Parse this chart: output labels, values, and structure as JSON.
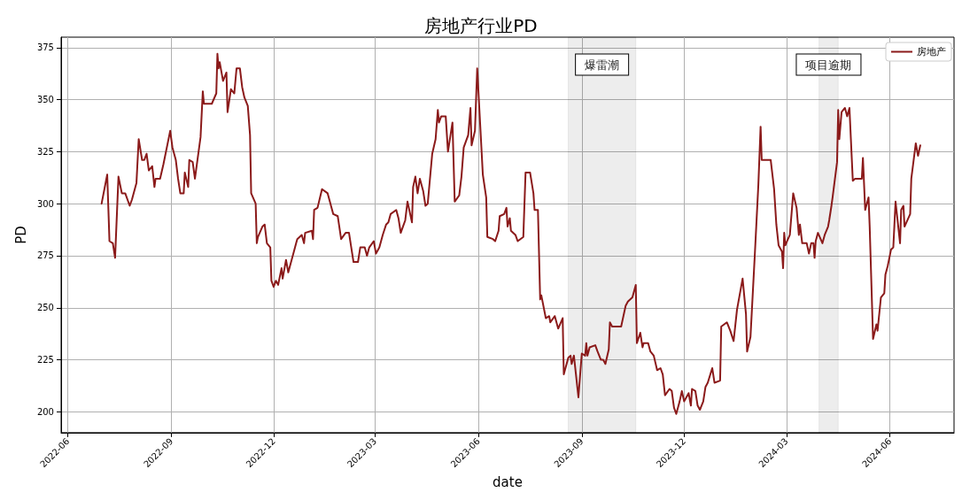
{
  "chart_data": {
    "type": "line",
    "title": "房地产行业PD",
    "xlabel": "date",
    "ylabel": "PD",
    "x": [
      "2022-07-01",
      "2022-07-06",
      "2022-07-08",
      "2022-07-11",
      "2022-07-13",
      "2022-07-16",
      "2022-07-19",
      "2022-07-22",
      "2022-07-26",
      "2022-07-28",
      "2022-08-01",
      "2022-08-03",
      "2022-08-06",
      "2022-08-08",
      "2022-08-10",
      "2022-08-12",
      "2022-08-15",
      "2022-08-17",
      "2022-08-18",
      "2022-08-22",
      "2022-08-25",
      "2022-08-31",
      "2022-09-02",
      "2022-09-05",
      "2022-09-07",
      "2022-09-09",
      "2022-09-12",
      "2022-09-13",
      "2022-09-16",
      "2022-09-17",
      "2022-09-20",
      "2022-09-22",
      "2022-09-27",
      "2022-09-29",
      "2022-09-30",
      "2022-10-07",
      "2022-10-11",
      "2022-10-12",
      "2022-10-13",
      "2022-10-14",
      "2022-10-17",
      "2022-10-20",
      "2022-10-21",
      "2022-10-24",
      "2022-10-27",
      "2022-10-29",
      "2022-11-01",
      "2022-11-03",
      "2022-11-05",
      "2022-11-08",
      "2022-11-10",
      "2022-11-11",
      "2022-11-15",
      "2022-11-16",
      "2022-11-17",
      "2022-11-21",
      "2022-11-23",
      "2022-11-25",
      "2022-11-28",
      "2022-11-29",
      "2022-12-01",
      "2022-12-03",
      "2022-12-05",
      "2022-12-08",
      "2022-12-09",
      "2022-12-12",
      "2022-12-14",
      "2022-12-19",
      "2022-12-21",
      "2022-12-22",
      "2022-12-26",
      "2022-12-28",
      "2022-12-29",
      "2023-01-04",
      "2023-01-05",
      "2023-01-06",
      "2023-01-09",
      "2023-01-13",
      "2023-01-18",
      "2023-01-23",
      "2023-01-27",
      "2023-01-30",
      "2023-02-03",
      "2023-02-06",
      "2023-02-08",
      "2023-02-10",
      "2023-02-14",
      "2023-02-16",
      "2023-02-20",
      "2023-02-22",
      "2023-02-24",
      "2023-02-28",
      "2023-03-02",
      "2023-03-05",
      "2023-03-08",
      "2023-03-11",
      "2023-03-13",
      "2023-03-15",
      "2023-03-20",
      "2023-03-22",
      "2023-03-24",
      "2023-03-28",
      "2023-03-30",
      "2023-04-03",
      "2023-04-04",
      "2023-04-06",
      "2023-04-08",
      "2023-04-10",
      "2023-04-13",
      "2023-04-15",
      "2023-04-17",
      "2023-04-21",
      "2023-04-24",
      "2023-04-26",
      "2023-04-27",
      "2023-04-29",
      "2023-05-03",
      "2023-05-05",
      "2023-05-09",
      "2023-05-11",
      "2023-05-15",
      "2023-05-17",
      "2023-05-19",
      "2023-05-23",
      "2023-05-25",
      "2023-05-26",
      "2023-05-29",
      "2023-05-31",
      "2023-06-05",
      "2023-06-08",
      "2023-06-09",
      "2023-06-14",
      "2023-06-16",
      "2023-06-19",
      "2023-06-20",
      "2023-06-24",
      "2023-06-26",
      "2023-06-27",
      "2023-06-29",
      "2023-06-30",
      "2023-07-04",
      "2023-07-06",
      "2023-07-11",
      "2023-07-13",
      "2023-07-17",
      "2023-07-20",
      "2023-07-21",
      "2023-07-24",
      "2023-07-26",
      "2023-07-27",
      "2023-07-31",
      "2023-08-03",
      "2023-08-04",
      "2023-08-08",
      "2023-08-11",
      "2023-08-15",
      "2023-08-16",
      "2023-08-20",
      "2023-08-22",
      "2023-08-23",
      "2023-08-25",
      "2023-08-29",
      "2023-09-01",
      "2023-09-04",
      "2023-09-05",
      "2023-09-06",
      "2023-09-08",
      "2023-09-13",
      "2023-09-15",
      "2023-09-18",
      "2023-09-20",
      "2023-09-22",
      "2023-09-25",
      "2023-09-26",
      "2023-09-28",
      "2023-10-06",
      "2023-10-10",
      "2023-10-12",
      "2023-10-16",
      "2023-10-19",
      "2023-10-20",
      "2023-10-23",
      "2023-10-25",
      "2023-10-26",
      "2023-10-30",
      "2023-11-01",
      "2023-11-04",
      "2023-11-07",
      "2023-11-10",
      "2023-11-12",
      "2023-11-14",
      "2023-11-18",
      "2023-11-20",
      "2023-11-22",
      "2023-11-24",
      "2023-11-27",
      "2023-11-29",
      "2023-12-01",
      "2023-12-05",
      "2023-12-07",
      "2023-12-08",
      "2023-12-11",
      "2023-12-13",
      "2023-12-15",
      "2023-12-18",
      "2023-12-20",
      "2023-12-22",
      "2023-12-26",
      "2023-12-28",
      "2024-01-02",
      "2024-01-03",
      "2024-01-08",
      "2024-01-11",
      "2024-01-14",
      "2024-01-17",
      "2024-01-22",
      "2024-01-25",
      "2024-01-26",
      "2024-01-29",
      "2024-02-02",
      "2024-02-05",
      "2024-02-07",
      "2024-02-08",
      "2024-02-16",
      "2024-02-19",
      "2024-02-21",
      "2024-02-23",
      "2024-02-26",
      "2024-02-27",
      "2024-02-28",
      "2024-02-29",
      "2024-03-04",
      "2024-03-07",
      "2024-03-10",
      "2024-03-12",
      "2024-03-13",
      "2024-03-15",
      "2024-03-19",
      "2024-03-21",
      "2024-03-23",
      "2024-03-25",
      "2024-03-26",
      "2024-03-27",
      "2024-03-29",
      "2024-04-02",
      "2024-04-04",
      "2024-04-07",
      "2024-04-08",
      "2024-04-10",
      "2024-04-11",
      "2024-04-15",
      "2024-04-16",
      "2024-04-17",
      "2024-04-19",
      "2024-04-22",
      "2024-04-24",
      "2024-04-26",
      "2024-04-29",
      "2024-05-01",
      "2024-05-07",
      "2024-05-08",
      "2024-05-10",
      "2024-05-13",
      "2024-05-14",
      "2024-05-17",
      "2024-05-20",
      "2024-05-21",
      "2024-05-24",
      "2024-05-27",
      "2024-05-28",
      "2024-05-30",
      "2024-06-02",
      "2024-06-04",
      "2024-06-06",
      "2024-06-10",
      "2024-06-11",
      "2024-06-13",
      "2024-06-14",
      "2024-06-19",
      "2024-06-20",
      "2024-06-24",
      "2024-06-26",
      "2024-06-28"
    ],
    "series": [
      {
        "name": "房地产",
        "color": "#8b1a1a",
        "values": [
          300,
          314,
          282,
          281,
          274,
          313,
          305,
          305,
          299,
          302,
          310,
          331,
          321,
          321,
          324,
          316,
          318,
          308,
          312,
          312,
          319,
          335,
          327,
          321,
          312,
          305,
          305,
          315,
          308,
          321,
          320,
          312,
          332,
          354,
          348,
          348,
          353,
          372,
          365,
          368,
          359,
          363,
          344,
          355,
          353,
          365,
          365,
          356,
          351,
          347,
          333,
          305,
          300,
          281,
          284,
          289,
          290,
          281,
          279,
          263,
          260,
          263,
          261,
          269,
          264,
          273,
          267,
          277,
          281,
          283,
          285,
          281,
          286,
          287,
          283,
          297,
          298,
          307,
          305,
          295,
          294,
          283,
          286,
          286,
          279,
          272,
          272,
          279,
          279,
          275,
          279,
          282,
          276,
          279,
          285,
          290,
          291,
          295,
          297,
          293,
          286,
          292,
          301,
          291,
          308,
          313,
          305,
          312,
          306,
          299,
          300,
          324,
          331,
          345,
          339,
          342,
          342,
          325,
          339,
          301,
          304,
          313,
          327,
          333,
          346,
          328,
          335,
          365,
          314,
          303,
          284,
          283,
          282,
          287,
          294,
          295,
          298,
          289,
          293,
          287,
          285,
          282,
          284,
          315,
          315,
          305,
          297,
          297,
          254,
          256,
          245,
          246,
          243,
          246,
          240,
          245,
          218,
          226,
          227,
          223,
          227,
          207,
          228,
          227,
          233,
          227,
          231,
          232,
          229,
          225,
          225,
          223,
          230,
          243,
          241,
          241,
          251,
          253,
          255,
          261,
          233,
          238,
          231,
          233,
          233,
          229,
          227,
          220,
          221,
          218,
          208,
          211,
          210,
          202,
          199,
          205,
          210,
          205,
          209,
          203,
          211,
          210,
          203,
          201,
          205,
          212,
          214,
          221,
          214,
          215,
          241,
          243,
          239,
          234,
          249,
          264,
          247,
          229,
          236,
          277,
          309,
          337,
          321,
          321,
          307,
          290,
          280,
          277,
          269,
          286,
          280,
          285,
          305,
          298,
          285,
          290,
          281,
          281,
          276,
          281,
          281,
          274,
          282,
          286,
          281,
          285,
          289,
          292,
          299,
          303,
          320,
          345,
          331,
          344,
          346,
          342,
          346,
          311,
          312,
          312,
          322,
          297,
          303,
          289,
          235,
          242,
          239,
          255,
          257,
          266,
          270,
          278,
          279,
          301,
          281,
          297,
          299,
          289,
          295,
          312,
          329,
          323,
          328
        ]
      }
    ],
    "xlim": [
      "2022-05-26",
      "2024-07-28"
    ],
    "xticks": [
      "2022-06",
      "2022-09",
      "2022-12",
      "2023-03",
      "2023-06",
      "2023-09",
      "2023-12",
      "2024-03",
      "2024-06"
    ],
    "ylim": [
      190,
      380
    ],
    "yticks": [
      200,
      225,
      250,
      275,
      300,
      325,
      350,
      375
    ],
    "bands": [
      {
        "axis": "x",
        "from": "2023-08-20",
        "to": "2023-10-19",
        "label": "爆雷潮",
        "color": "#000000"
      },
      {
        "axis": "x",
        "from": "2024-03-30",
        "to": "2024-04-16",
        "label": "项目逾期",
        "color": "#000000"
      }
    ],
    "grid": true,
    "legend": "top right",
    "line_style": "solid",
    "marker": "none"
  }
}
